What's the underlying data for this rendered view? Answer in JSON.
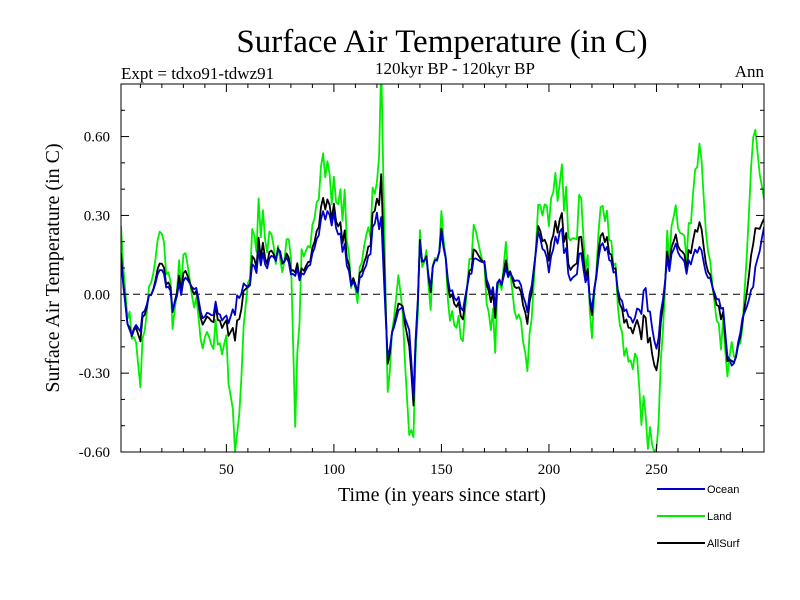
{
  "chart_data": {
    "type": "line",
    "title": "Surface Air Temperature (in C)",
    "subtitle": "120kyr BP - 120kyr BP",
    "experiment_label": "Expt = tdxo91-tdwz91",
    "season_label": "Ann",
    "xlabel": "Time (in years since start)",
    "ylabel": "Surface Air Temperature (in C)",
    "xlim": [
      1,
      300
    ],
    "ylim": [
      -0.6,
      0.8
    ],
    "x_ticks": [
      50,
      100,
      150,
      200,
      250
    ],
    "x_tick_labels": [
      "50",
      "100",
      "150",
      "200",
      "250"
    ],
    "y_ticks": [
      -0.6,
      -0.3,
      0.0,
      0.3,
      0.6
    ],
    "y_tick_labels": [
      "-0.60",
      "-0.30",
      "0.00",
      "0.30",
      "0.60"
    ],
    "zero_line": true,
    "grid": false,
    "legend_position": "bottom-right",
    "series": [
      {
        "name": "Ocean",
        "color": "#0000cc",
        "anchors": [
          [
            1,
            0.13
          ],
          [
            5,
            -0.17
          ],
          [
            10,
            -0.12
          ],
          [
            15,
            0.0
          ],
          [
            20,
            0.08
          ],
          [
            25,
            -0.05
          ],
          [
            30,
            0.05
          ],
          [
            35,
            0.02
          ],
          [
            40,
            -0.1
          ],
          [
            45,
            -0.05
          ],
          [
            50,
            -0.12
          ],
          [
            55,
            -0.02
          ],
          [
            60,
            0.05
          ],
          [
            65,
            0.14
          ],
          [
            70,
            0.12
          ],
          [
            75,
            0.15
          ],
          [
            80,
            0.1
          ],
          [
            85,
            0.05
          ],
          [
            90,
            0.15
          ],
          [
            95,
            0.28
          ],
          [
            100,
            0.3
          ],
          [
            105,
            0.15
          ],
          [
            110,
            0.0
          ],
          [
            115,
            0.1
          ],
          [
            120,
            0.3
          ],
          [
            122,
            0.25
          ],
          [
            125,
            -0.25
          ],
          [
            130,
            -0.05
          ],
          [
            135,
            -0.1
          ],
          [
            137,
            -0.38
          ],
          [
            140,
            0.2
          ],
          [
            145,
            0.05
          ],
          [
            150,
            0.22
          ],
          [
            155,
            0.0
          ],
          [
            160,
            -0.05
          ],
          [
            165,
            0.15
          ],
          [
            170,
            0.1
          ],
          [
            175,
            -0.02
          ],
          [
            180,
            0.1
          ],
          [
            185,
            0.05
          ],
          [
            190,
            -0.05
          ],
          [
            195,
            0.2
          ],
          [
            200,
            0.1
          ],
          [
            205,
            0.25
          ],
          [
            210,
            0.05
          ],
          [
            215,
            0.15
          ],
          [
            220,
            -0.05
          ],
          [
            225,
            0.2
          ],
          [
            230,
            0.1
          ],
          [
            235,
            -0.05
          ],
          [
            240,
            -0.12
          ],
          [
            245,
            0.0
          ],
          [
            250,
            -0.2
          ],
          [
            255,
            0.12
          ],
          [
            260,
            0.18
          ],
          [
            265,
            0.1
          ],
          [
            270,
            0.2
          ],
          [
            275,
            0.05
          ],
          [
            280,
            -0.05
          ],
          [
            285,
            -0.3
          ],
          [
            290,
            -0.1
          ],
          [
            295,
            0.05
          ],
          [
            300,
            0.25
          ]
        ]
      },
      {
        "name": "Land",
        "color": "#00ee00",
        "anchors": [
          [
            1,
            0.25
          ],
          [
            5,
            -0.15
          ],
          [
            10,
            -0.3
          ],
          [
            15,
            0.05
          ],
          [
            20,
            0.2
          ],
          [
            25,
            -0.1
          ],
          [
            30,
            0.15
          ],
          [
            35,
            -0.05
          ],
          [
            40,
            -0.2
          ],
          [
            45,
            -0.15
          ],
          [
            50,
            -0.25
          ],
          [
            55,
            -0.57
          ],
          [
            60,
            0.1
          ],
          [
            65,
            0.3
          ],
          [
            70,
            0.2
          ],
          [
            75,
            0.1
          ],
          [
            80,
            0.2
          ],
          [
            82,
            -0.48
          ],
          [
            85,
            0.1
          ],
          [
            90,
            0.25
          ],
          [
            95,
            0.45
          ],
          [
            100,
            0.42
          ],
          [
            105,
            0.3
          ],
          [
            110,
            -0.05
          ],
          [
            115,
            0.2
          ],
          [
            120,
            0.4
          ],
          [
            122,
            0.78
          ],
          [
            125,
            -0.4
          ],
          [
            130,
            0.1
          ],
          [
            135,
            -0.45
          ],
          [
            137,
            -0.52
          ],
          [
            140,
            0.25
          ],
          [
            145,
            0.0
          ],
          [
            150,
            0.28
          ],
          [
            155,
            -0.1
          ],
          [
            160,
            -0.15
          ],
          [
            165,
            0.3
          ],
          [
            170,
            0.05
          ],
          [
            175,
            -0.15
          ],
          [
            180,
            0.2
          ],
          [
            185,
            -0.1
          ],
          [
            190,
            -0.25
          ],
          [
            195,
            0.25
          ],
          [
            200,
            0.3
          ],
          [
            205,
            0.45
          ],
          [
            210,
            0.2
          ],
          [
            215,
            0.35
          ],
          [
            220,
            -0.15
          ],
          [
            225,
            0.35
          ],
          [
            230,
            0.15
          ],
          [
            235,
            -0.2
          ],
          [
            240,
            -0.3
          ],
          [
            245,
            -0.52
          ],
          [
            250,
            -0.57
          ],
          [
            255,
            0.2
          ],
          [
            260,
            0.3
          ],
          [
            265,
            0.2
          ],
          [
            270,
            0.62
          ],
          [
            275,
            0.1
          ],
          [
            280,
            -0.2
          ],
          [
            285,
            -0.25
          ],
          [
            290,
            -0.15
          ],
          [
            295,
            0.65
          ],
          [
            300,
            0.35
          ]
        ]
      },
      {
        "name": "AllSurf",
        "color": "#000000",
        "anchors": [
          [
            1,
            0.15
          ],
          [
            5,
            -0.17
          ],
          [
            10,
            -0.15
          ],
          [
            15,
            0.0
          ],
          [
            20,
            0.1
          ],
          [
            25,
            -0.05
          ],
          [
            30,
            0.08
          ],
          [
            35,
            0.0
          ],
          [
            40,
            -0.12
          ],
          [
            45,
            -0.07
          ],
          [
            50,
            -0.15
          ],
          [
            55,
            -0.12
          ],
          [
            60,
            0.06
          ],
          [
            65,
            0.18
          ],
          [
            70,
            0.14
          ],
          [
            75,
            0.14
          ],
          [
            80,
            0.12
          ],
          [
            85,
            0.06
          ],
          [
            90,
            0.17
          ],
          [
            95,
            0.32
          ],
          [
            100,
            0.33
          ],
          [
            105,
            0.19
          ],
          [
            110,
            0.0
          ],
          [
            115,
            0.13
          ],
          [
            120,
            0.35
          ],
          [
            122,
            0.4
          ],
          [
            125,
            -0.28
          ],
          [
            130,
            -0.02
          ],
          [
            135,
            -0.15
          ],
          [
            137,
            -0.41
          ],
          [
            140,
            0.21
          ],
          [
            145,
            0.04
          ],
          [
            150,
            0.23
          ],
          [
            155,
            -0.02
          ],
          [
            160,
            -0.08
          ],
          [
            165,
            0.19
          ],
          [
            170,
            0.09
          ],
          [
            175,
            -0.05
          ],
          [
            180,
            0.13
          ],
          [
            185,
            0.02
          ],
          [
            190,
            -0.09
          ],
          [
            195,
            0.21
          ],
          [
            200,
            0.15
          ],
          [
            205,
            0.3
          ],
          [
            210,
            0.09
          ],
          [
            215,
            0.21
          ],
          [
            220,
            -0.07
          ],
          [
            225,
            0.24
          ],
          [
            230,
            0.12
          ],
          [
            235,
            -0.09
          ],
          [
            240,
            -0.16
          ],
          [
            245,
            -0.12
          ],
          [
            250,
            -0.28
          ],
          [
            255,
            0.14
          ],
          [
            260,
            0.21
          ],
          [
            265,
            0.13
          ],
          [
            270,
            0.3
          ],
          [
            275,
            0.06
          ],
          [
            280,
            -0.09
          ],
          [
            285,
            -0.29
          ],
          [
            290,
            -0.12
          ],
          [
            295,
            0.22
          ],
          [
            300,
            0.28
          ]
        ]
      }
    ]
  }
}
